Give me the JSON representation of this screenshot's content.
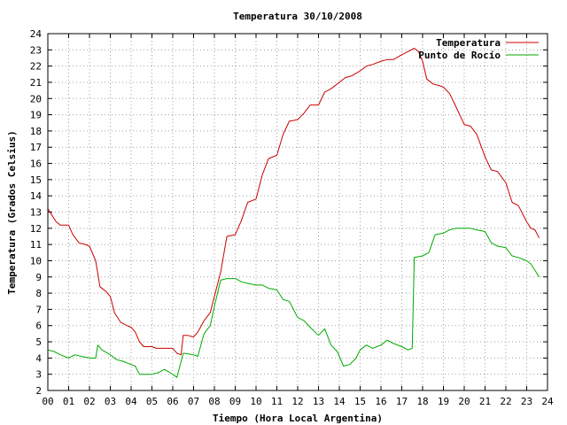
{
  "chart_data": {
    "type": "line",
    "title": "Temperatura 30/10/2008",
    "xlabel": "Tiempo (Hora Local Argentina)",
    "ylabel": "Temperatura (Grados Celsius)",
    "xlim": [
      0,
      24
    ],
    "ylim": [
      2,
      24
    ],
    "x_ticks": [
      "00",
      "01",
      "02",
      "03",
      "04",
      "05",
      "06",
      "07",
      "08",
      "09",
      "10",
      "11",
      "12",
      "13",
      "14",
      "15",
      "16",
      "17",
      "18",
      "19",
      "20",
      "21",
      "22",
      "23",
      "24"
    ],
    "y_ticks": [
      "2",
      "3",
      "4",
      "5",
      "6",
      "7",
      "8",
      "9",
      "10",
      "11",
      "12",
      "13",
      "14",
      "15",
      "16",
      "17",
      "18",
      "19",
      "20",
      "21",
      "22",
      "23",
      "24"
    ],
    "grid": true,
    "legend_position": "top-right",
    "colors": {
      "temperatura": "#cc0000",
      "punto_de_rocio": "#00aa00",
      "grid": "#a0a0a0"
    },
    "series": [
      {
        "name": "Temperatura",
        "x": [
          0,
          0.2,
          0.4,
          0.6,
          1.0,
          1.2,
          1.5,
          1.8,
          2.0,
          2.3,
          2.5,
          2.8,
          3.0,
          3.2,
          3.5,
          3.8,
          4.0,
          4.2,
          4.4,
          4.6,
          5.0,
          5.2,
          5.5,
          6.0,
          6.2,
          6.4,
          6.5,
          6.7,
          7.0,
          7.2,
          7.5,
          7.8,
          8.0,
          8.3,
          8.6,
          9.0,
          9.3,
          9.6,
          10.0,
          10.3,
          10.6,
          11.0,
          11.3,
          11.6,
          12.0,
          12.3,
          12.6,
          13.0,
          13.3,
          13.6,
          14.0,
          14.3,
          14.6,
          15.0,
          15.3,
          15.6,
          16.0,
          16.3,
          16.6,
          17.0,
          17.3,
          17.6,
          17.8,
          18.0,
          18.2,
          18.5,
          18.8,
          19.0,
          19.3,
          19.6,
          20.0,
          20.3,
          20.6,
          21.0,
          21.3,
          21.6,
          22.0,
          22.3,
          22.6,
          23.0,
          23.2,
          23.4,
          23.6
        ],
        "y": [
          13.2,
          12.8,
          12.4,
          12.2,
          12.2,
          11.6,
          11.1,
          11.0,
          10.9,
          10.0,
          8.4,
          8.1,
          7.8,
          6.8,
          6.2,
          6.0,
          5.9,
          5.6,
          5.0,
          4.7,
          4.7,
          4.6,
          4.6,
          4.6,
          4.3,
          4.2,
          5.4,
          5.4,
          5.3,
          5.6,
          6.3,
          6.8,
          7.8,
          9.3,
          11.5,
          11.6,
          12.5,
          13.6,
          13.8,
          15.3,
          16.3,
          16.5,
          17.8,
          18.6,
          18.7,
          19.1,
          19.6,
          19.6,
          20.4,
          20.6,
          21.0,
          21.3,
          21.4,
          21.7,
          22.0,
          22.1,
          22.3,
          22.4,
          22.4,
          22.7,
          22.9,
          23.1,
          22.9,
          22.3,
          21.2,
          20.9,
          20.8,
          20.7,
          20.3,
          19.5,
          18.4,
          18.3,
          17.8,
          16.4,
          15.6,
          15.5,
          14.8,
          13.6,
          13.4,
          12.4,
          12.0,
          11.9,
          11.4
        ]
      },
      {
        "name": "Punto de Rocío",
        "x": [
          0,
          0.3,
          0.6,
          1.0,
          1.3,
          1.6,
          2.0,
          2.3,
          2.4,
          2.6,
          3.0,
          3.3,
          3.6,
          4.0,
          4.2,
          4.4,
          5.0,
          5.3,
          5.6,
          6.0,
          6.2,
          6.5,
          7.0,
          7.2,
          7.5,
          7.8,
          8.0,
          8.3,
          8.6,
          9.0,
          9.3,
          9.6,
          10.0,
          10.3,
          10.6,
          11.0,
          11.3,
          11.6,
          12.0,
          12.3,
          12.6,
          13.0,
          13.3,
          13.6,
          13.9,
          14.2,
          14.5,
          14.8,
          15.0,
          15.3,
          15.6,
          16.0,
          16.3,
          16.6,
          17.0,
          17.3,
          17.5,
          17.6,
          18.0,
          18.3,
          18.6,
          19.0,
          19.3,
          19.6,
          20.0,
          20.3,
          20.6,
          21.0,
          21.3,
          21.6,
          22.0,
          22.3,
          22.6,
          23.0,
          23.2,
          23.4,
          23.6
        ],
        "y": [
          4.5,
          4.4,
          4.2,
          4.0,
          4.2,
          4.1,
          4.0,
          4.0,
          4.8,
          4.5,
          4.2,
          3.9,
          3.8,
          3.6,
          3.5,
          3.0,
          3.0,
          3.1,
          3.3,
          3.0,
          2.8,
          4.3,
          4.2,
          4.1,
          5.5,
          6.0,
          7.2,
          8.8,
          8.9,
          8.9,
          8.7,
          8.6,
          8.5,
          8.5,
          8.3,
          8.2,
          7.6,
          7.5,
          6.5,
          6.3,
          5.9,
          5.4,
          5.8,
          4.8,
          4.4,
          3.5,
          3.6,
          4.0,
          4.5,
          4.8,
          4.6,
          4.8,
          5.1,
          4.9,
          4.7,
          4.5,
          4.6,
          10.2,
          10.3,
          10.5,
          11.6,
          11.7,
          11.9,
          12.0,
          12.0,
          12.0,
          11.9,
          11.8,
          11.1,
          10.9,
          10.8,
          10.3,
          10.2,
          10.0,
          9.8,
          9.4,
          9.0
        ]
      }
    ]
  }
}
